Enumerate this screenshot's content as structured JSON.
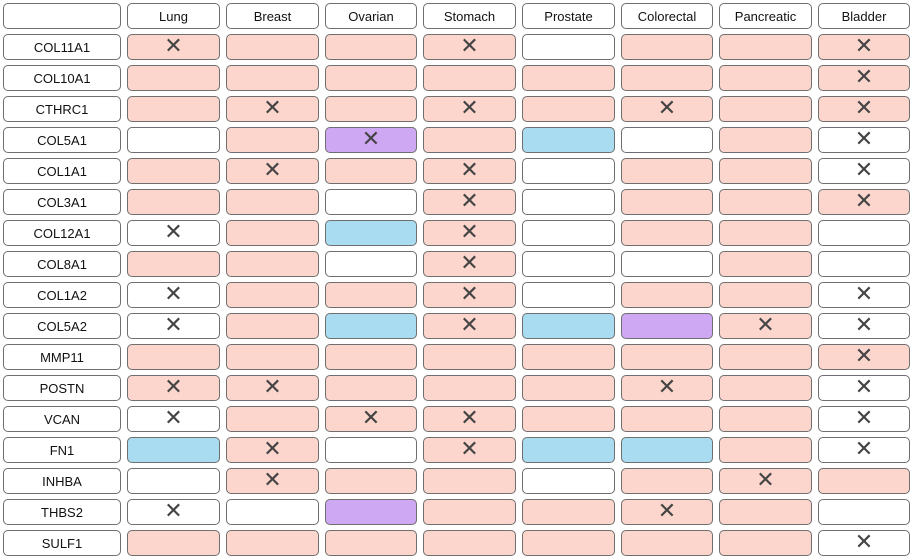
{
  "columns": [
    "",
    "Lung",
    "Breast",
    "Ovarian",
    "Stomach",
    "Prostate",
    "Colorectal",
    "Pancreatic",
    "Bladder"
  ],
  "colors": {
    "pink": "#fcd6cc",
    "blue": "#a9dcf0",
    "purple": "#cfa8f3",
    "white": "#ffffff"
  },
  "mark_glyph": "✕",
  "rows": [
    {
      "gene": "COL11A1",
      "cells": [
        [
          "p",
          1
        ],
        [
          "p",
          0
        ],
        [
          "p",
          0
        ],
        [
          "p",
          1
        ],
        [
          "w",
          0
        ],
        [
          "p",
          0
        ],
        [
          "p",
          0
        ],
        [
          "p",
          1
        ]
      ]
    },
    {
      "gene": "COL10A1",
      "cells": [
        [
          "p",
          0
        ],
        [
          "p",
          0
        ],
        [
          "p",
          0
        ],
        [
          "p",
          0
        ],
        [
          "p",
          0
        ],
        [
          "p",
          0
        ],
        [
          "p",
          0
        ],
        [
          "p",
          1
        ]
      ]
    },
    {
      "gene": "CTHRC1",
      "cells": [
        [
          "p",
          0
        ],
        [
          "p",
          1
        ],
        [
          "p",
          0
        ],
        [
          "p",
          1
        ],
        [
          "p",
          0
        ],
        [
          "p",
          1
        ],
        [
          "p",
          0
        ],
        [
          "p",
          1
        ]
      ]
    },
    {
      "gene": "COL5A1",
      "cells": [
        [
          "w",
          0
        ],
        [
          "p",
          0
        ],
        [
          "v",
          1
        ],
        [
          "p",
          0
        ],
        [
          "b",
          0
        ],
        [
          "w",
          0
        ],
        [
          "p",
          0
        ],
        [
          "w",
          1
        ]
      ]
    },
    {
      "gene": "COL1A1",
      "cells": [
        [
          "p",
          0
        ],
        [
          "p",
          1
        ],
        [
          "p",
          0
        ],
        [
          "p",
          1
        ],
        [
          "w",
          0
        ],
        [
          "p",
          0
        ],
        [
          "p",
          0
        ],
        [
          "w",
          1
        ]
      ]
    },
    {
      "gene": "COL3A1",
      "cells": [
        [
          "p",
          0
        ],
        [
          "p",
          0
        ],
        [
          "w",
          0
        ],
        [
          "p",
          1
        ],
        [
          "w",
          0
        ],
        [
          "p",
          0
        ],
        [
          "p",
          0
        ],
        [
          "p",
          1
        ]
      ]
    },
    {
      "gene": "COL12A1",
      "cells": [
        [
          "w",
          1
        ],
        [
          "p",
          0
        ],
        [
          "b",
          0
        ],
        [
          "p",
          1
        ],
        [
          "w",
          0
        ],
        [
          "p",
          0
        ],
        [
          "p",
          0
        ],
        [
          "w",
          0
        ]
      ]
    },
    {
      "gene": "COL8A1",
      "cells": [
        [
          "p",
          0
        ],
        [
          "p",
          0
        ],
        [
          "w",
          0
        ],
        [
          "p",
          1
        ],
        [
          "w",
          0
        ],
        [
          "w",
          0
        ],
        [
          "p",
          0
        ],
        [
          "w",
          0
        ]
      ]
    },
    {
      "gene": "COL1A2",
      "cells": [
        [
          "w",
          1
        ],
        [
          "p",
          0
        ],
        [
          "p",
          0
        ],
        [
          "p",
          1
        ],
        [
          "w",
          0
        ],
        [
          "p",
          0
        ],
        [
          "p",
          0
        ],
        [
          "w",
          1
        ]
      ]
    },
    {
      "gene": "COL5A2",
      "cells": [
        [
          "w",
          1
        ],
        [
          "p",
          0
        ],
        [
          "b",
          0
        ],
        [
          "p",
          1
        ],
        [
          "b",
          0
        ],
        [
          "v",
          0
        ],
        [
          "p",
          1
        ],
        [
          "w",
          1
        ]
      ]
    },
    {
      "gene": "MMP11",
      "cells": [
        [
          "p",
          0
        ],
        [
          "p",
          0
        ],
        [
          "p",
          0
        ],
        [
          "p",
          0
        ],
        [
          "p",
          0
        ],
        [
          "p",
          0
        ],
        [
          "p",
          0
        ],
        [
          "p",
          1
        ]
      ]
    },
    {
      "gene": "POSTN",
      "cells": [
        [
          "p",
          1
        ],
        [
          "p",
          1
        ],
        [
          "p",
          0
        ],
        [
          "p",
          0
        ],
        [
          "p",
          0
        ],
        [
          "p",
          1
        ],
        [
          "p",
          0
        ],
        [
          "w",
          1
        ]
      ]
    },
    {
      "gene": "VCAN",
      "cells": [
        [
          "w",
          1
        ],
        [
          "p",
          0
        ],
        [
          "p",
          1
        ],
        [
          "p",
          1
        ],
        [
          "p",
          0
        ],
        [
          "p",
          0
        ],
        [
          "p",
          0
        ],
        [
          "w",
          1
        ]
      ]
    },
    {
      "gene": "FN1",
      "cells": [
        [
          "b",
          0
        ],
        [
          "p",
          1
        ],
        [
          "w",
          0
        ],
        [
          "p",
          1
        ],
        [
          "b",
          0
        ],
        [
          "b",
          0
        ],
        [
          "p",
          0
        ],
        [
          "w",
          1
        ]
      ]
    },
    {
      "gene": "INHBA",
      "cells": [
        [
          "w",
          0
        ],
        [
          "p",
          1
        ],
        [
          "p",
          0
        ],
        [
          "p",
          0
        ],
        [
          "w",
          0
        ],
        [
          "p",
          0
        ],
        [
          "p",
          1
        ],
        [
          "p",
          0
        ]
      ]
    },
    {
      "gene": "THBS2",
      "cells": [
        [
          "w",
          1
        ],
        [
          "w",
          0
        ],
        [
          "v",
          0
        ],
        [
          "p",
          0
        ],
        [
          "p",
          0
        ],
        [
          "p",
          1
        ],
        [
          "p",
          0
        ],
        [
          "w",
          0
        ]
      ]
    },
    {
      "gene": "SULF1",
      "cells": [
        [
          "p",
          0
        ],
        [
          "p",
          0
        ],
        [
          "p",
          0
        ],
        [
          "p",
          0
        ],
        [
          "p",
          0
        ],
        [
          "p",
          0
        ],
        [
          "p",
          0
        ],
        [
          "w",
          1
        ]
      ]
    }
  ]
}
